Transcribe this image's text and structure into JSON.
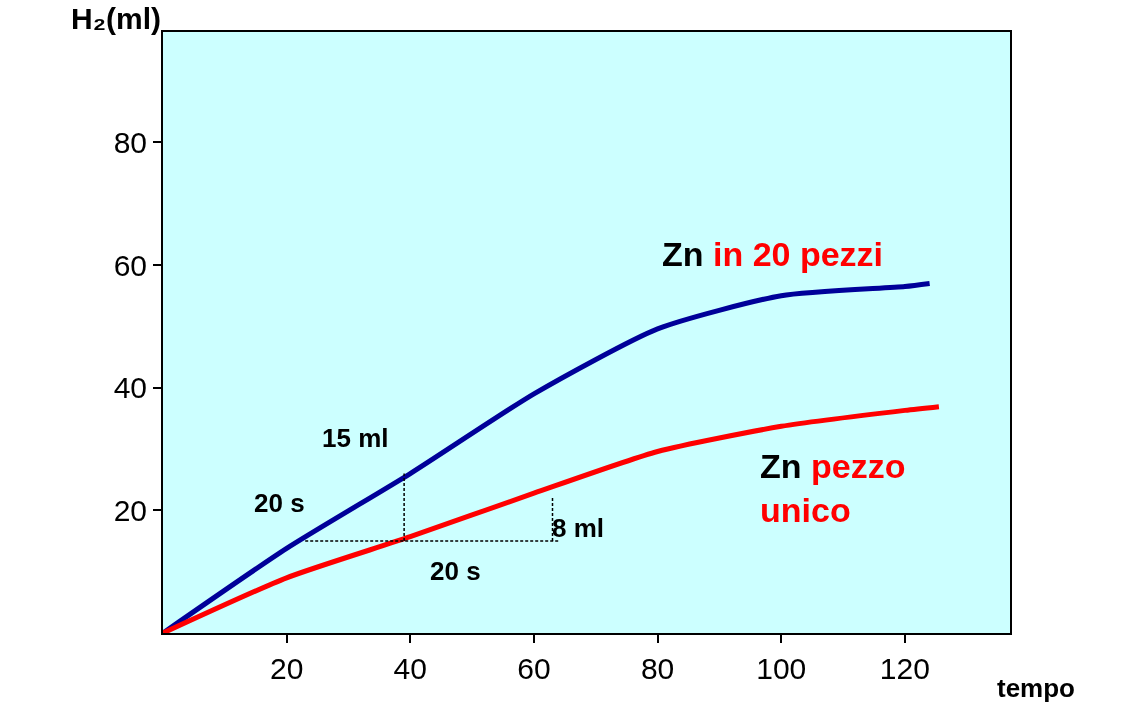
{
  "chart_data": {
    "type": "line",
    "ylabel": "H₂(ml)",
    "xlabel": "tempo",
    "xlim": [
      0,
      137
    ],
    "ylim": [
      0,
      98
    ],
    "xticks": [
      20,
      40,
      60,
      80,
      100,
      120
    ],
    "yticks": [
      20,
      40,
      60,
      80
    ],
    "grid": false,
    "legend": false,
    "marker": "none",
    "line_style": "solid",
    "series": [
      {
        "name": "Zn in 20 pezzi",
        "color": "#000099",
        "x": [
          0,
          20,
          40,
          60,
          80,
          100,
          120,
          124
        ],
        "values": [
          0,
          13.8,
          26,
          39,
          49.6,
          55,
          56.5,
          57
        ]
      },
      {
        "name": "Zn pezzo unico",
        "color": "#ff0000",
        "x": [
          0,
          20,
          40,
          60,
          80,
          100,
          120,
          125.5
        ],
        "values": [
          0,
          9,
          15.7,
          22.8,
          29.6,
          33.7,
          36.3,
          36.9
        ]
      },
      {
        "color": "#000000",
        "line_style": "dashed",
        "x": [
          23,
          64
        ],
        "values": [
          15,
          15
        ]
      },
      {
        "color": "#000000",
        "line_style": "dashed",
        "x": [
          39,
          39
        ],
        "values": [
          15,
          26
        ]
      },
      {
        "color": "#000000",
        "line_style": "dashed",
        "x": [
          63,
          63
        ],
        "values": [
          15,
          22
        ]
      }
    ],
    "annotations": [
      "15 ml",
      "20 s",
      "8 ml",
      "20 s"
    ]
  }
}
